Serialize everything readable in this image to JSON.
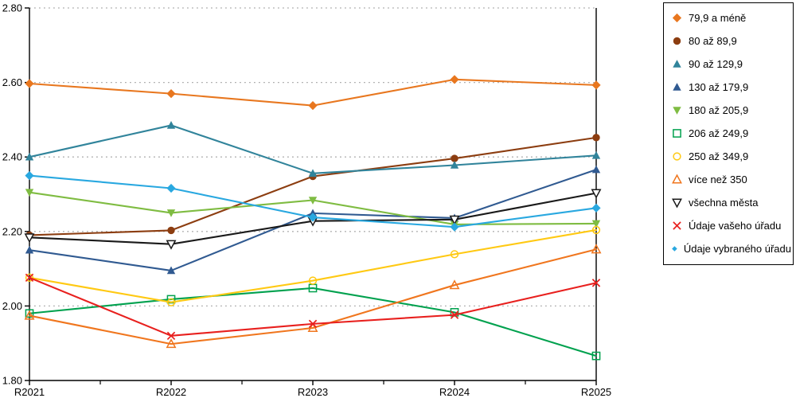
{
  "chart_data": {
    "type": "line",
    "title": "",
    "xlabel": "",
    "ylabel": "",
    "x_categories": [
      "R2021",
      "R2022",
      "R2023",
      "R2024",
      "R2025"
    ],
    "ylim": [
      1.8,
      2.8
    ],
    "y_tick_labels": [
      "2.80",
      "2.60",
      "2.40",
      "2.20",
      "2.00",
      "1.80"
    ],
    "grid": "horizontal-dotted",
    "grid_color": "#ababab",
    "axis_color": "#000000",
    "legend_position": "right",
    "series": [
      {
        "name": "79,9 a méně",
        "marker": "diamond-filled",
        "color": "#e8771f",
        "values": [
          2.597,
          2.57,
          2.538,
          2.608,
          2.593
        ]
      },
      {
        "name": "80 až 89,9",
        "marker": "circle-filled",
        "color": "#8c3d10",
        "values": [
          2.19,
          2.203,
          2.348,
          2.396,
          2.452
        ]
      },
      {
        "name": "90 až 129,9",
        "marker": "triangle-up-filled",
        "color": "#31849b",
        "values": [
          2.4,
          2.485,
          2.356,
          2.378,
          2.404
        ]
      },
      {
        "name": "130 až 179,9",
        "marker": "triangle-up-filled",
        "color": "#305a91",
        "values": [
          2.15,
          2.095,
          2.249,
          2.236,
          2.366
        ]
      },
      {
        "name": "180 až 205,9",
        "marker": "triangle-down-filled",
        "color": "#7fbc42",
        "values": [
          2.305,
          2.25,
          2.284,
          2.219,
          2.221
        ]
      },
      {
        "name": "206 až 249,9",
        "marker": "square-open",
        "color": "#00a14e",
        "values": [
          1.98,
          2.018,
          2.048,
          1.983,
          1.866
        ]
      },
      {
        "name": "250 až 349,9",
        "marker": "circle-open",
        "color": "#ffc913",
        "values": [
          2.076,
          2.01,
          2.068,
          2.139,
          2.204
        ]
      },
      {
        "name": "více než 350",
        "marker": "triangle-up-open",
        "color": "#f0761e",
        "values": [
          1.974,
          1.898,
          1.941,
          2.056,
          2.152
        ]
      },
      {
        "name": "všechna města",
        "marker": "triangle-down-open",
        "color": "#1a1a1a",
        "values": [
          2.184,
          2.166,
          2.228,
          2.232,
          2.303
        ]
      },
      {
        "name": "Údaje vašeho úřadu",
        "marker": "x-cross",
        "color": "#e8201e",
        "values": [
          2.076,
          1.92,
          1.952,
          1.976,
          2.062
        ]
      },
      {
        "name": "Údaje vybraného úřadu",
        "marker": "diamond-filled",
        "color": "#29a8e0",
        "values": [
          2.35,
          2.316,
          2.238,
          2.212,
          2.263
        ]
      }
    ]
  }
}
